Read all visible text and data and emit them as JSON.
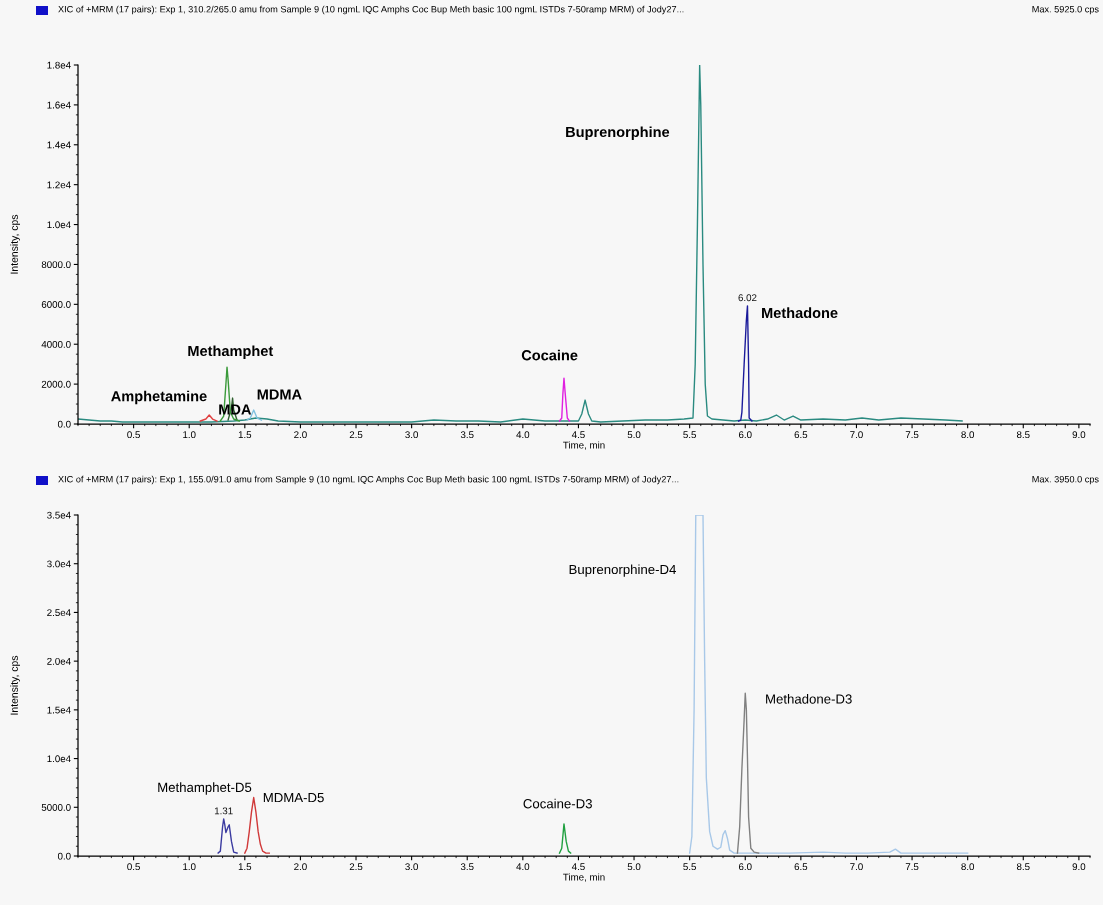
{
  "chart_data": [
    {
      "type": "line",
      "title": "XIC of +MRM (17 pairs): Exp 1, 310.2/265.0 amu from Sample 9 (10 ngmL IQC Amphs Coc Bup Meth basic 100 ngmL ISTDs 7-50ramp MRM) of Jody27...",
      "subtitle": "Max. 5925.0 cps",
      "xlabel": "Time, min",
      "ylabel": "Intensity, cps",
      "xlim": [
        0,
        9.1
      ],
      "xticks": [
        0.5,
        {
          "value": 1,
          "label": "1.0"
        },
        1.5,
        {
          "value": 2,
          "label": "2.0"
        },
        2.5,
        {
          "value": 3,
          "label": "3.0"
        },
        3.5,
        {
          "value": 4,
          "label": "4.0"
        },
        4.5,
        {
          "value": 5,
          "label": "5.0"
        },
        5.5,
        {
          "value": 6,
          "label": "6.0"
        },
        6.5,
        {
          "value": 7,
          "label": "7.0"
        },
        7.5,
        {
          "value": 8,
          "label": "8.0"
        },
        8.5,
        {
          "value": 9,
          "label": "9.0"
        }
      ],
      "ylim": [
        0,
        18000
      ],
      "yticks": [
        {
          "value": 0,
          "label": "0.0"
        },
        {
          "value": 2000,
          "label": "2000.0"
        },
        {
          "value": 4000,
          "label": "4000.0"
        },
        {
          "value": 6000,
          "label": "6000.0"
        },
        {
          "value": 8000,
          "label": "8000.0"
        },
        {
          "value": 10000,
          "label": "1.0e4"
        },
        {
          "value": 12000,
          "label": "1.2e4"
        },
        {
          "value": 14000,
          "label": "1.4e4"
        },
        {
          "value": 16000,
          "label": "1.6e4"
        },
        {
          "value": 18000,
          "label": "1.8e4"
        }
      ],
      "line_style": "solid",
      "series": [
        {
          "color": "#2a8a80",
          "x": [
            0.0,
            0.1,
            0.2,
            0.3,
            0.4,
            0.5,
            0.6,
            0.8,
            1.0,
            1.2,
            1.4,
            1.5,
            1.6,
            1.7,
            1.8,
            2.0,
            2.2,
            2.4,
            2.6,
            2.8,
            3.0,
            3.2,
            3.4,
            3.6,
            3.8,
            4.0,
            4.2,
            4.4,
            4.5,
            4.53,
            4.56,
            4.59,
            4.62,
            4.7,
            4.9,
            5.1,
            5.3,
            5.45,
            5.53,
            5.55,
            5.57,
            5.59,
            5.6,
            5.62,
            5.64,
            5.66,
            5.7,
            5.8,
            5.9,
            6.0,
            6.1,
            6.2,
            6.28,
            6.35,
            6.43,
            6.5,
            6.7,
            6.9,
            7.05,
            7.2,
            7.4,
            7.6,
            7.8,
            7.95
          ],
          "values": [
            250,
            200,
            150,
            150,
            100,
            100,
            100,
            100,
            100,
            100,
            150,
            200,
            300,
            250,
            150,
            100,
            100,
            100,
            100,
            100,
            100,
            200,
            150,
            150,
            100,
            250,
            150,
            150,
            150,
            500,
            1200,
            500,
            150,
            100,
            150,
            200,
            200,
            250,
            300,
            3000,
            10000,
            18000,
            16000,
            8000,
            2000,
            400,
            250,
            200,
            150,
            200,
            150,
            250,
            450,
            200,
            400,
            200,
            250,
            200,
            300,
            200,
            300,
            250,
            200,
            150
          ]
        },
        {
          "color": "#e04040",
          "x": [
            1.1,
            1.15,
            1.18,
            1.21,
            1.25
          ],
          "values": [
            150,
            250,
            450,
            250,
            150
          ]
        },
        {
          "color": "#2e5e2e",
          "x": [
            1.35,
            1.38,
            1.39,
            1.4,
            1.43
          ],
          "values": [
            200,
            800,
            1300,
            700,
            200
          ]
        },
        {
          "color": "#3a9a3a",
          "x": [
            1.28,
            1.31,
            1.33,
            1.34,
            1.35,
            1.37,
            1.4,
            1.45
          ],
          "values": [
            150,
            400,
            2000,
            2850,
            2200,
            600,
            250,
            150
          ]
        },
        {
          "color": "#80c0e0",
          "x": [
            1.52,
            1.55,
            1.58,
            1.61,
            1.65
          ],
          "values": [
            200,
            300,
            700,
            300,
            200
          ]
        },
        {
          "color": "#e020e0",
          "x": [
            4.33,
            4.35,
            4.36,
            4.37,
            4.38,
            4.4,
            4.42
          ],
          "values": [
            150,
            300,
            1500,
            2300,
            1600,
            300,
            150
          ]
        },
        {
          "color": "#1a1a9a",
          "x": [
            5.94,
            5.96,
            5.97,
            5.99,
            6.01,
            6.02,
            6.03,
            6.035,
            6.06
          ],
          "values": [
            150,
            200,
            600,
            3000,
            5200,
            5925,
            3000,
            300,
            150
          ]
        }
      ],
      "annotations": [
        "Amphetamine",
        "MDA",
        "Methamphet",
        "MDMA",
        "Cocaine",
        "Buprenorphine",
        "Methadone",
        {
          "text": "6.02",
          "x": 6.02,
          "y": 5925
        }
      ]
    },
    {
      "type": "line",
      "title": "XIC of +MRM (17 pairs): Exp 1, 155.0/91.0 amu from Sample 9 (10 ngmL IQC Amphs Coc Bup Meth basic 100 ngmL ISTDs 7-50ramp MRM) of Jody27...",
      "subtitle": "Max. 3950.0 cps",
      "xlabel": "Time, min",
      "ylabel": "Intensity, cps",
      "xlim": [
        0,
        9.1
      ],
      "xticks": [
        0.5,
        {
          "value": 1,
          "label": "1.0"
        },
        1.5,
        {
          "value": 2,
          "label": "2.0"
        },
        2.5,
        {
          "value": 3,
          "label": "3.0"
        },
        3.5,
        {
          "value": 4,
          "label": "4.0"
        },
        4.5,
        {
          "value": 5,
          "label": "5.0"
        },
        5.5,
        {
          "value": 6,
          "label": "6.0"
        },
        6.5,
        {
          "value": 7,
          "label": "7.0"
        },
        7.5,
        {
          "value": 8,
          "label": "8.0"
        },
        8.5,
        {
          "value": 9,
          "label": "9.0"
        }
      ],
      "ylim": [
        0,
        35000
      ],
      "yticks": [
        {
          "value": 0,
          "label": "0.0"
        },
        {
          "value": 5000,
          "label": "5000.0"
        },
        {
          "value": 10000,
          "label": "1.0e4"
        },
        {
          "value": 15000,
          "label": "1.5e4"
        },
        {
          "value": 20000,
          "label": "2.0e4"
        },
        {
          "value": 25000,
          "label": "2.5e4"
        },
        {
          "value": 30000,
          "label": "3.0e4"
        },
        {
          "value": 35000,
          "label": "3.5e4"
        }
      ],
      "line_style": "solid",
      "series": [
        {
          "color": "#3a3aa0",
          "x": [
            1.26,
            1.28,
            1.3,
            1.31,
            1.32,
            1.33,
            1.35,
            1.36,
            1.38,
            1.4,
            1.43
          ],
          "values": [
            300,
            500,
            3000,
            3800,
            3200,
            2400,
            3000,
            3200,
            1500,
            400,
            300
          ]
        },
        {
          "color": "#d03838",
          "x": [
            1.5,
            1.52,
            1.54,
            1.56,
            1.58,
            1.6,
            1.62,
            1.64,
            1.66,
            1.69,
            1.72
          ],
          "values": [
            300,
            800,
            2500,
            4500,
            6000,
            4500,
            2500,
            1200,
            500,
            300,
            300
          ]
        },
        {
          "color": "#20a040",
          "x": [
            4.33,
            4.35,
            4.37,
            4.39,
            4.41,
            4.43
          ],
          "values": [
            300,
            800,
            3300,
            1500,
            500,
            300
          ]
        },
        {
          "color": "#a8c8e8",
          "x": [
            5.5,
            5.52,
            5.54,
            5.555,
            5.62,
            5.635,
            5.65,
            5.68,
            5.71,
            5.75,
            5.78,
            5.8,
            5.82,
            5.84,
            5.86,
            5.9,
            6.0,
            6.1,
            6.2,
            6.4,
            6.7,
            6.9,
            7.1,
            7.3,
            7.35,
            7.4,
            7.6,
            7.8,
            8.0
          ],
          "values": [
            300,
            2000,
            15000,
            35000,
            35000,
            20000,
            8000,
            2500,
            1000,
            700,
            900,
            2200,
            2600,
            1800,
            600,
            300,
            300,
            300,
            300,
            300,
            400,
            300,
            300,
            400,
            700,
            300,
            300,
            300,
            300
          ]
        },
        {
          "color": "#808080",
          "x": [
            5.93,
            5.95,
            5.97,
            5.99,
            6.0,
            6.01,
            6.02,
            6.03,
            6.05,
            6.08,
            6.12
          ],
          "values": [
            300,
            3000,
            9000,
            14000,
            16700,
            15000,
            10000,
            4000,
            800,
            400,
            300
          ]
        }
      ],
      "annotations": [
        "Methamphet-D5",
        "MDMA-D5",
        "Cocaine-D3",
        "Buprenorphine-D4",
        "Methadone-D3",
        {
          "text": "1.31",
          "x": 1.31,
          "y": 3800
        }
      ]
    }
  ]
}
